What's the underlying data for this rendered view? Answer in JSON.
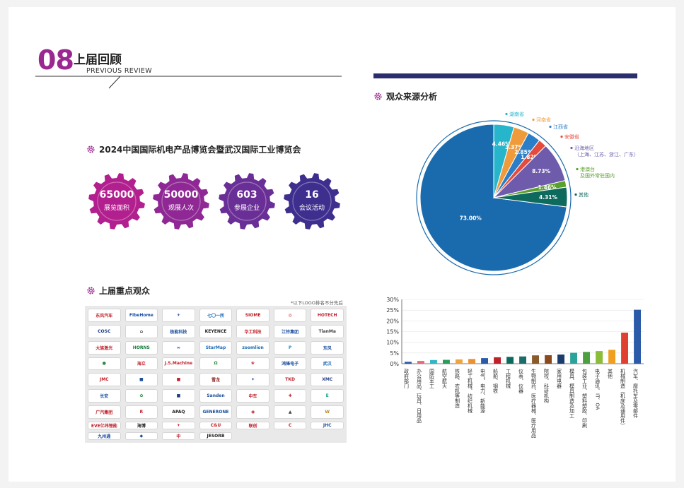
{
  "section": {
    "number": "08",
    "title": "上届回顾",
    "subtitle": "PREVIOUS REVIEW"
  },
  "expo": {
    "title": "2024中国国际机电产品博览会暨武汉国际工业博览会",
    "stats": [
      {
        "value": "65000",
        "label": "展览面积",
        "color": "#b21f8e"
      },
      {
        "value": "50000",
        "label": "观展人次",
        "color": "#8f2895"
      },
      {
        "value": "603",
        "label": "参展企业",
        "color": "#6a2f97"
      },
      {
        "value": "16",
        "label": "会议活动",
        "color": "#3e2f8f"
      }
    ]
  },
  "key_visitors": {
    "title": "上届重点观众",
    "note": "*以下LOGO排名不分先后",
    "logos": [
      {
        "text": "东风汽车",
        "color": "#c0202a"
      },
      {
        "text": "FibeHome",
        "color": "#1b4ea1"
      },
      {
        "text": "✈",
        "color": "#1d4e9c"
      },
      {
        "text": "七〇一所",
        "color": "#1b6bb3"
      },
      {
        "text": "SIOME",
        "color": "#b72025"
      },
      {
        "text": "◎",
        "color": "#c8302a"
      },
      {
        "text": "HOTECH",
        "color": "#c0202a"
      },
      {
        "text": "COSC",
        "color": "#1f3f8c"
      },
      {
        "text": "⌂",
        "color": "#333"
      },
      {
        "text": "极能科技",
        "color": "#1b4ea1"
      },
      {
        "text": "KEYENCE",
        "color": "#222"
      },
      {
        "text": "华工科技",
        "color": "#c0202a"
      },
      {
        "text": "江铃集团",
        "color": "#1d4e9c"
      },
      {
        "text": "TianMa",
        "color": "#444"
      },
      {
        "text": "大族激光",
        "color": "#c0202a"
      },
      {
        "text": "HORNS",
        "color": "#137a3c"
      },
      {
        "text": "∞",
        "color": "#1b4ea1"
      },
      {
        "text": "StarMap",
        "color": "#1b6bb3"
      },
      {
        "text": "zoomlion",
        "color": "#1b6bb3"
      },
      {
        "text": "P",
        "color": "#1b8fd1"
      },
      {
        "text": "东风",
        "color": "#1d4e9c"
      },
      {
        "text": "●",
        "color": "#2a8a3c"
      },
      {
        "text": "海立",
        "color": "#c0202a"
      },
      {
        "text": "J.S.Machine",
        "color": "#c0202a"
      },
      {
        "text": "Ω",
        "color": "#2a8a3c"
      },
      {
        "text": "❀",
        "color": "#c0202a"
      },
      {
        "text": "鸿锋电子",
        "color": "#1b4ea1"
      },
      {
        "text": "武汉",
        "color": "#1b6bb3"
      },
      {
        "text": "JMC",
        "color": "#c0202a"
      },
      {
        "text": "■",
        "color": "#1d4e9c"
      },
      {
        "text": "■",
        "color": "#c0202a"
      },
      {
        "text": "雪龙",
        "color": "#8b1c1c"
      },
      {
        "text": "✦",
        "color": "#1b4ea1"
      },
      {
        "text": "TKD",
        "color": "#c0202a"
      },
      {
        "text": "XMC",
        "color": "#2a3f8c"
      },
      {
        "text": "长安",
        "color": "#1b4ea1"
      },
      {
        "text": "✿",
        "color": "#2a8a3c"
      },
      {
        "text": "■",
        "color": "#1d3f7a"
      },
      {
        "text": "Sanden",
        "color": "#1d4e9c"
      },
      {
        "text": "中车",
        "color": "#c0202a"
      },
      {
        "text": "✚",
        "color": "#c0202a"
      },
      {
        "text": "E",
        "color": "#1aa38c"
      },
      {
        "text": "广汽集团",
        "color": "#c0202a"
      },
      {
        "text": "R",
        "color": "#c0202a"
      },
      {
        "text": "APAQ",
        "color": "#222"
      },
      {
        "text": "GENERONE",
        "color": "#1b4ea1"
      },
      {
        "text": "◉",
        "color": "#c0202a"
      },
      {
        "text": "▲",
        "color": "#444"
      },
      {
        "text": "W",
        "color": "#b8862b"
      },
      {
        "text": "EVE亿纬锂能",
        "color": "#c0202a"
      },
      {
        "text": "海博",
        "color": "#222"
      },
      {
        "text": "✈",
        "color": "#c0202a"
      },
      {
        "text": "C&U",
        "color": "#c0202a"
      },
      {
        "text": "联创",
        "color": "#c0202a"
      },
      {
        "text": "C",
        "color": "#c0202a"
      },
      {
        "text": "JHC",
        "color": "#1d4e9c"
      },
      {
        "text": "九州通",
        "color": "#1d4e9c"
      },
      {
        "text": "◆",
        "color": "#1d4e9c"
      },
      {
        "text": "中",
        "color": "#c0202a"
      },
      {
        "text": "JESORB",
        "color": "#222"
      }
    ]
  },
  "sources": {
    "title": "观众来源分析"
  },
  "chart_data": [
    {
      "type": "pie",
      "title": "观众来源分析",
      "slices": [
        {
          "label": "湖北省",
          "value": 73.0,
          "display": "73.00%",
          "color": "#1a6aae"
        },
        {
          "label": "湖南省",
          "value": 4.46,
          "display": "4.46%",
          "color": "#27b5cb"
        },
        {
          "label": "河南省",
          "value": 3.37,
          "display": "3.37%",
          "color": "#ef9b3c"
        },
        {
          "label": "江西省",
          "value": 2.85,
          "display": "2.85%",
          "color": "#2a7ec7"
        },
        {
          "label": "安徽省",
          "value": 1.82,
          "display": "1.82%",
          "color": "#e64a3c"
        },
        {
          "label": "沿海地区",
          "label2": "（上海、江苏、浙江、广东）",
          "value": 8.73,
          "display": "8.73%",
          "color": "#6e5bab"
        },
        {
          "label": "港澳台",
          "label2": "及国外常驻国内",
          "value": 1.46,
          "display": "1.46%",
          "color": "#5aa02c"
        },
        {
          "label": "其他",
          "value": 4.31,
          "display": "4.31%",
          "color": "#0f6a5e"
        }
      ]
    },
    {
      "type": "bar",
      "y_ticks": [
        "0%",
        "5%",
        "10%",
        "15%",
        "20%",
        "25%",
        "30%"
      ],
      "ylim": [
        0,
        30
      ],
      "categories": [
        "政府部门",
        "办公用品、玩具、日用品",
        "国防军工",
        "航空航天",
        "铁路、农机等制造",
        "轻工机械、纺织机械",
        "电气、电力、新能源",
        "船舶、钢铁",
        "工程机械",
        "仪表、仪器",
        "生物制药、医疗器械、医疗用品",
        "院校、科研机构",
        "家用电器",
        "模具、模具制造及加工",
        "包装工业、塑料塑胶、印刷",
        "电子通讯、IT、OA",
        "其他",
        "机械制造（机床及通用件）",
        "汽车、摩托车及零部件"
      ],
      "values": [
        0.9,
        1.3,
        1.7,
        1.8,
        2.0,
        2.2,
        2.6,
        3.0,
        3.2,
        3.4,
        3.9,
        4.0,
        4.3,
        5.1,
        5.5,
        5.9,
        6.5,
        14.5,
        25.2
      ],
      "colors": [
        "#2a5aa8",
        "#e36b7d",
        "#33b4c7",
        "#2c9b5e",
        "#f0a43c",
        "#ef8f2d",
        "#2a5aa8",
        "#c0202a",
        "#0f6a5e",
        "#1b6d6a",
        "#8b5a2b",
        "#8b4a1e",
        "#1b3d6e",
        "#2ca39a",
        "#4ca040",
        "#8cbd3a",
        "#f0a020",
        "#e04030",
        "#2a5aa8"
      ]
    }
  ]
}
